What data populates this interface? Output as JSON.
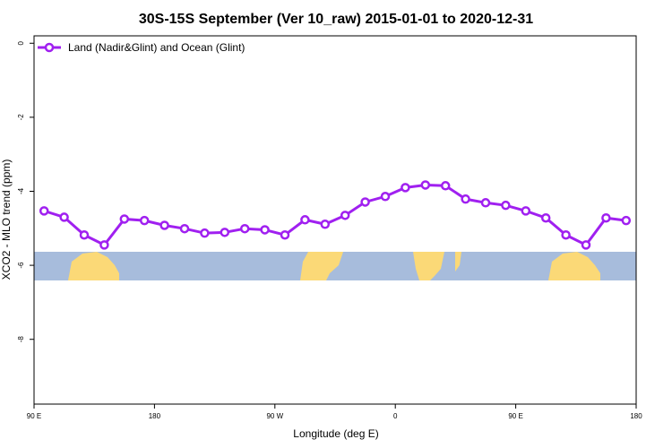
{
  "chart_data": {
    "type": "line",
    "title": "30S-15S September (Ver 10_raw)   2015-01-01 to 2020-12-31",
    "x_label": "Longitude (deg E)",
    "y_label": "XCO2 - MLO trend (ppm)",
    "xlim": [
      90,
      540
    ],
    "xticks": [
      {
        "value": 90,
        "label": "90 E"
      },
      {
        "value": 180,
        "label": "180"
      },
      {
        "value": 270,
        "label": "90 W"
      },
      {
        "value": 360,
        "label": "0"
      },
      {
        "value": 450,
        "label": "90 E"
      },
      {
        "value": 540,
        "label": "180"
      }
    ],
    "ylim": [
      -9.75,
      0.2
    ],
    "yticks": [
      -8,
      -6,
      -4,
      -2,
      0
    ],
    "legend": "top-left",
    "x": [
      97.5,
      112.5,
      127.5,
      142.5,
      157.5,
      172.5,
      187.5,
      202.5,
      217.5,
      232.5,
      247.5,
      262.5,
      277.5,
      292.5,
      307.5,
      322.5,
      337.5,
      352.5,
      367.5,
      382.5,
      397.5,
      412.5,
      427.5,
      442.5,
      457.5,
      472.5,
      487.5,
      502.5,
      517.5,
      532.5
    ],
    "series": [
      {
        "name": "Land (Nadir&Glint) and Ocean (Glint)",
        "color": "#a020f0",
        "values": [
          -4.53,
          -4.7,
          -5.18,
          -5.45,
          -4.75,
          -4.79,
          -4.92,
          -5.01,
          -5.13,
          -5.11,
          -5.01,
          -5.04,
          -5.18,
          -4.77,
          -4.89,
          -4.65,
          -4.29,
          -4.14,
          -3.9,
          -3.83,
          -3.85,
          -4.21,
          -4.31,
          -4.38,
          -4.53,
          -4.72,
          -5.18,
          -5.45,
          -4.72,
          -4.79
        ]
      }
    ]
  }
}
